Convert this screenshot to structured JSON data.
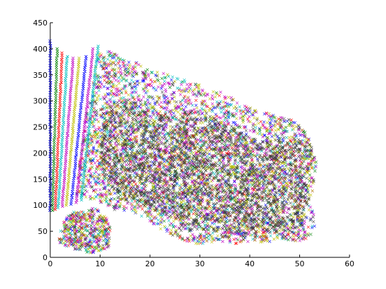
{
  "chart_data": {
    "type": "scatter",
    "title": "",
    "xlabel": "",
    "ylabel": "",
    "xlim": [
      0,
      60
    ],
    "ylim": [
      0,
      450
    ],
    "x_ticks": [
      0,
      10,
      20,
      30,
      40,
      50,
      60
    ],
    "y_ticks": [
      0,
      50,
      100,
      150,
      200,
      250,
      300,
      350,
      400,
      450
    ],
    "x_tick_labels": [
      "0",
      "10",
      "20",
      "30",
      "40",
      "50",
      "60"
    ],
    "y_tick_labels": [
      "0",
      "50",
      "100",
      "150",
      "200",
      "250",
      "300",
      "350",
      "400",
      "450"
    ],
    "grid": false,
    "legend": "none",
    "marker": "x",
    "series_colors": [
      "#0000ff",
      "#008000",
      "#ff0000",
      "#00bfbf",
      "#bf00bf",
      "#bfbf00",
      "#404040"
    ],
    "rays": [
      {
        "color": "#0000ff",
        "x": [
          0.0,
          0.0
        ],
        "y": [
          90,
          415
        ]
      },
      {
        "color": "#008000",
        "x": [
          0.4,
          1.4
        ],
        "y": [
          90,
          400
        ]
      },
      {
        "color": "#ff0000",
        "x": [
          1.0,
          2.4
        ],
        "y": [
          92,
          392
        ]
      },
      {
        "color": "#00bfbf",
        "x": [
          1.6,
          3.4
        ],
        "y": [
          95,
          385
        ]
      },
      {
        "color": "#bf00bf",
        "x": [
          2.4,
          4.6
        ],
        "y": [
          98,
          382
        ]
      },
      {
        "color": "#bfbf00",
        "x": [
          3.2,
          5.8
        ],
        "y": [
          100,
          382
        ]
      },
      {
        "color": "#0000ff",
        "x": [
          4.2,
          7.2
        ],
        "y": [
          102,
          385
        ]
      },
      {
        "color": "#bf00bf",
        "x": [
          5.2,
          8.6
        ],
        "y": [
          105,
          400
        ]
      },
      {
        "color": "#00bfbf",
        "x": [
          6.2,
          9.6
        ],
        "y": [
          110,
          405
        ]
      }
    ],
    "cloud_outline": [
      [
        5,
        120
      ],
      [
        7,
        260
      ],
      [
        9,
        360
      ],
      [
        10,
        398
      ],
      [
        12,
        395
      ],
      [
        15,
        378
      ],
      [
        18,
        372
      ],
      [
        20,
        358
      ],
      [
        23,
        352
      ],
      [
        27,
        340
      ],
      [
        31,
        328
      ],
      [
        34,
        318
      ],
      [
        38,
        298
      ],
      [
        42,
        282
      ],
      [
        45,
        272
      ],
      [
        49,
        262
      ],
      [
        51.5,
        240
      ],
      [
        53,
        210
      ],
      [
        53.5,
        175
      ],
      [
        53,
        140
      ],
      [
        52,
        110
      ],
      [
        53,
        80
      ],
      [
        53,
        45
      ],
      [
        50,
        30
      ],
      [
        46,
        35
      ],
      [
        43,
        28
      ],
      [
        40,
        30
      ],
      [
        37,
        25
      ],
      [
        34,
        30
      ],
      [
        31,
        26
      ],
      [
        28,
        25
      ],
      [
        25,
        40
      ],
      [
        22,
        55
      ],
      [
        19,
        75
      ],
      [
        16,
        88
      ],
      [
        13,
        90
      ],
      [
        11,
        100
      ],
      [
        9,
        110
      ],
      [
        7,
        112
      ]
    ],
    "lower_cluster_outline": [
      [
        1.5,
        30
      ],
      [
        2,
        50
      ],
      [
        3,
        75
      ],
      [
        4.5,
        90
      ],
      [
        6,
        86
      ],
      [
        8,
        95
      ],
      [
        10,
        92
      ],
      [
        11.5,
        75
      ],
      [
        12,
        55
      ],
      [
        11.8,
        20
      ],
      [
        10,
        12
      ],
      [
        8,
        8
      ],
      [
        5,
        15
      ],
      [
        3,
        22
      ]
    ],
    "dense_core_outline": [
      [
        12,
        290
      ],
      [
        15,
        305
      ],
      [
        19,
        280
      ],
      [
        24,
        268
      ],
      [
        29,
        285
      ],
      [
        34,
        262
      ],
      [
        40,
        230
      ],
      [
        44,
        222
      ],
      [
        48,
        230
      ],
      [
        52,
        225
      ],
      [
        53,
        195
      ],
      [
        51,
        150
      ],
      [
        52,
        110
      ],
      [
        51,
        60
      ],
      [
        47,
        38
      ],
      [
        44,
        55
      ],
      [
        42,
        40
      ],
      [
        38,
        48
      ],
      [
        35,
        32
      ],
      [
        32,
        55
      ],
      [
        29,
        40
      ],
      [
        26,
        62
      ],
      [
        23,
        80
      ],
      [
        20,
        95
      ],
      [
        17,
        102
      ],
      [
        14,
        110
      ],
      [
        11,
        150
      ],
      [
        10,
        200
      ],
      [
        10.5,
        250
      ]
    ]
  }
}
